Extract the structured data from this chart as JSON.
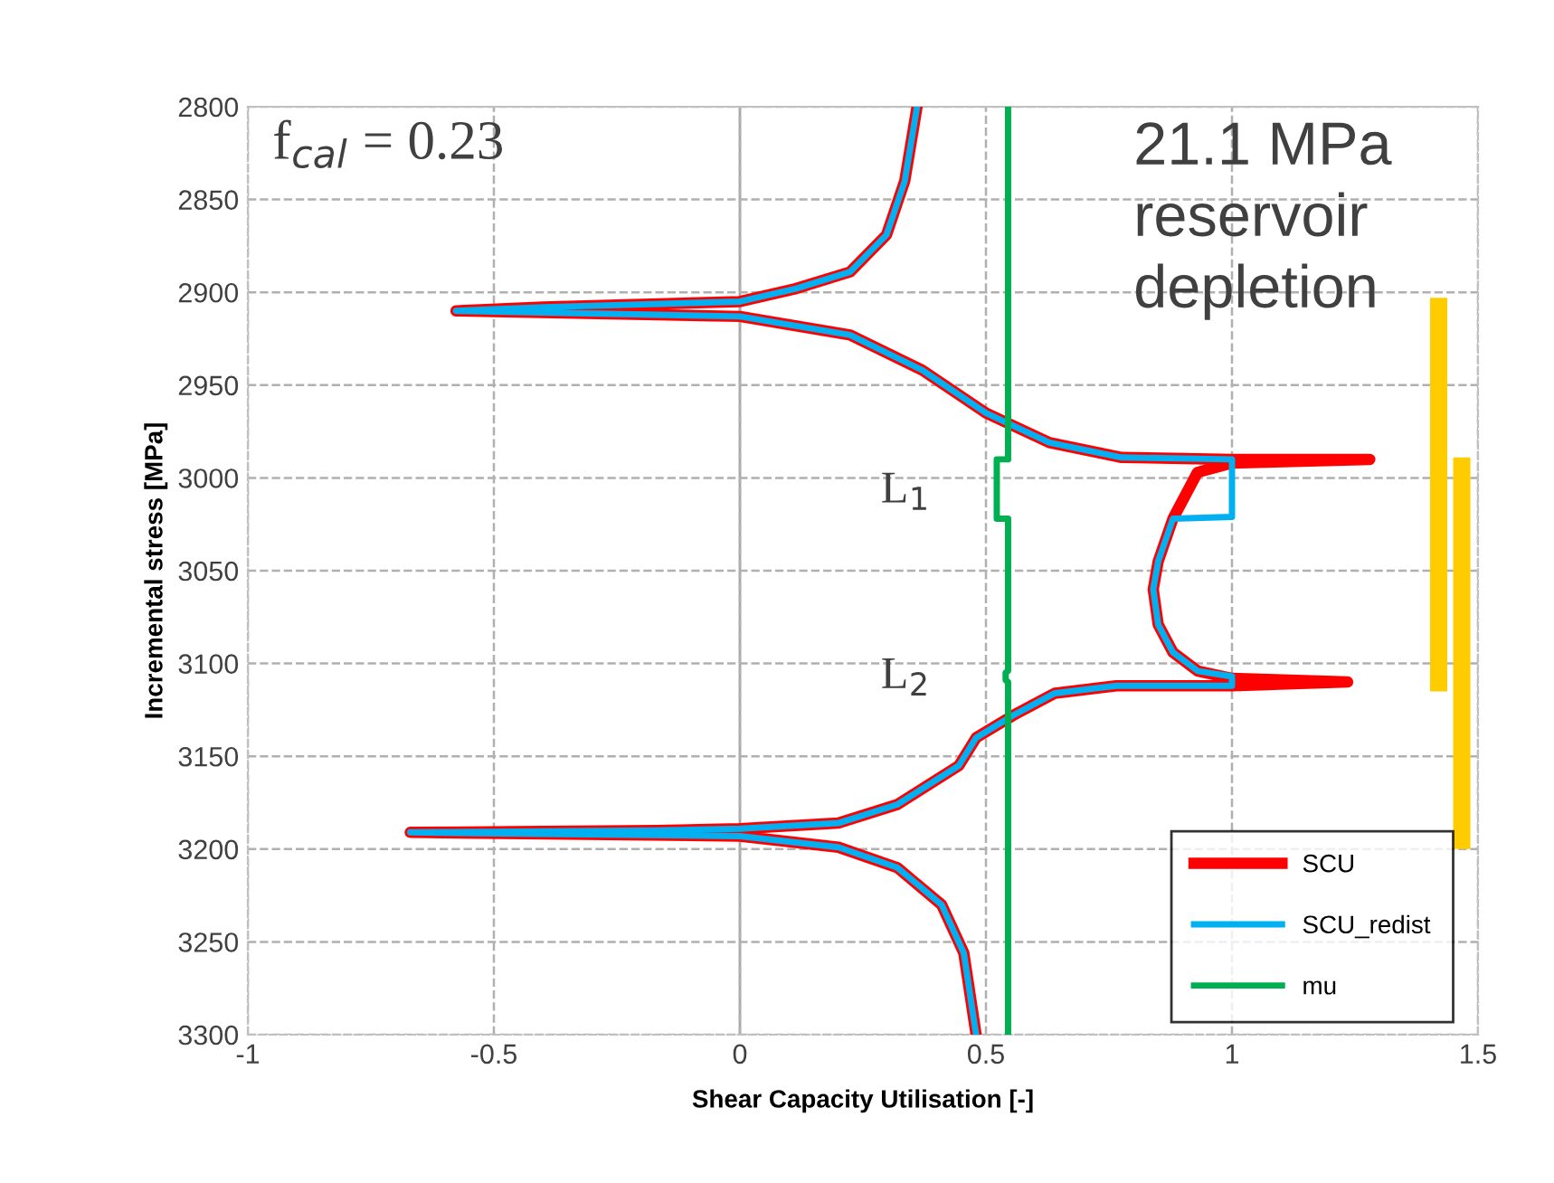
{
  "chart_data": {
    "type": "line",
    "xlabel": "Shear Capacity Utilisation [-]",
    "ylabel": "Incremental stress [MPa]",
    "xlim": [
      -1,
      1.5
    ],
    "xticks": [
      -1,
      -0.5,
      0,
      0.5,
      1,
      1.5
    ],
    "ylim": [
      3300,
      2800
    ],
    "yticks": [
      2800,
      2850,
      2900,
      2950,
      3000,
      3050,
      3100,
      3150,
      3200,
      3250,
      3300
    ],
    "grid": true,
    "legend": "bottom right",
    "line_style": "solid",
    "marker": "none",
    "ref_lines": [
      {
        "axis": "x",
        "value": 0,
        "color": "#a6a6a6"
      }
    ],
    "annotations": [
      "f$_{cal}$ = 0.23",
      "21.1 MPa\nreservoir\ndepletion",
      "L$_{1}$",
      "L$_{2}$"
    ],
    "series": [
      {
        "name": "SCU",
        "color": "#ff0000",
        "x": [
          0.36,
          0.335,
          0.298,
          0.224,
          0.114,
          0,
          -0.4,
          -0.577,
          0,
          0.224,
          0.371,
          0.5,
          0.629,
          0.776,
          1.0,
          1.28,
          1.0,
          0.93,
          0.88,
          0.85,
          0.84,
          0.85,
          0.88,
          0.93,
          1.0,
          1.235,
          1.0,
          0.765,
          0.64,
          0.555,
          0.48,
          0.445,
          0.32,
          0.2,
          0,
          -0.17,
          -0.67,
          0,
          0.2,
          0.32,
          0.41,
          0.455,
          0.48
        ],
        "values": [
          2800,
          2840,
          2869,
          2889,
          2898,
          2905,
          2908,
          2910,
          2913,
          2923,
          2942,
          2965,
          2981,
          2989,
          2990,
          2990,
          2992,
          2997,
          3022,
          3045,
          3060,
          3079,
          3094,
          3104,
          3108,
          3110,
          3112,
          3112,
          3116,
          3128,
          3140,
          3155,
          3176,
          3186,
          3189,
          3190,
          3191,
          3193,
          3199,
          3210,
          3230,
          3256,
          3300
        ]
      },
      {
        "name": "SCU_redist",
        "color": "#00b0f0",
        "x": [
          0.36,
          0.335,
          0.298,
          0.224,
          0.114,
          0,
          -0.4,
          -0.577,
          0,
          0.224,
          0.371,
          0.5,
          0.629,
          0.776,
          1.0,
          1.0,
          0.88,
          0.85,
          0.84,
          0.85,
          0.88,
          0.93,
          1.0,
          1.0,
          0.765,
          0.64,
          0.555,
          0.48,
          0.445,
          0.32,
          0.2,
          0,
          -0.17,
          -0.67,
          0,
          0.2,
          0.32,
          0.41,
          0.455,
          0.48
        ],
        "values": [
          2800,
          2840,
          2869,
          2889,
          2898,
          2905,
          2908,
          2910,
          2913,
          2923,
          2942,
          2965,
          2981,
          2989,
          2990,
          3021,
          3022,
          3045,
          3060,
          3079,
          3094,
          3104,
          3107,
          3112,
          3112,
          3116,
          3128,
          3140,
          3155,
          3176,
          3186,
          3189,
          3190,
          3191,
          3193,
          3199,
          3210,
          3230,
          3256,
          3300
        ]
      },
      {
        "name": "mu",
        "color": "#00b050",
        "x": [
          0.545,
          0.545,
          0.522,
          0.522,
          0.545,
          0.545,
          0.54,
          0.54,
          0.545,
          0.545
        ],
        "values": [
          2800,
          2990,
          2990,
          3022,
          3022,
          3104,
          3105,
          3109,
          3110,
          3300
        ]
      },
      {
        "type": "bar",
        "color": "#ffcc00",
        "x": [
          1.42,
          1.467
        ],
        "base": [
          2903,
          2989
        ],
        "values": [
          212,
          211
        ]
      }
    ]
  }
}
